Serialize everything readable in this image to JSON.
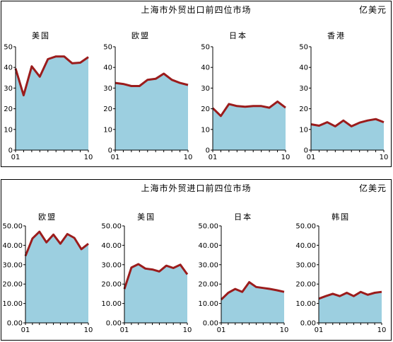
{
  "chart_data": [
    {
      "type": "area",
      "title": "上海市外贸出口前四位市场",
      "unit": "亿美元",
      "x_first": "01",
      "x_last": "10",
      "ylim": [
        0,
        50
      ],
      "yticks": [
        "0",
        "10",
        "20",
        "30",
        "40",
        "50"
      ],
      "fill_color": "#9ccfe0",
      "line_color": "#9b1c1c",
      "charts": [
        {
          "name": "美国",
          "x": [
            1,
            2,
            3,
            4,
            5,
            6,
            7,
            8,
            9,
            10
          ],
          "values": [
            39.5,
            26.5,
            40.5,
            35.5,
            44,
            45.3,
            45.3,
            42,
            42.3,
            45
          ]
        },
        {
          "name": "欧盟",
          "x": [
            1,
            2,
            3,
            4,
            5,
            6,
            7,
            8,
            9,
            10
          ],
          "values": [
            32.5,
            32,
            31,
            31,
            34,
            34.5,
            37,
            34,
            32.5,
            31.5
          ]
        },
        {
          "name": "日本",
          "x": [
            1,
            2,
            3,
            4,
            5,
            6,
            7,
            8,
            9,
            10
          ],
          "values": [
            20.3,
            16.5,
            22.3,
            21.3,
            21,
            21.3,
            21.3,
            20.5,
            23.5,
            20.5
          ]
        },
        {
          "name": "香港",
          "x": [
            1,
            2,
            3,
            4,
            5,
            6,
            7,
            8,
            9,
            10
          ],
          "values": [
            12.5,
            11.8,
            13.5,
            11.5,
            14.3,
            11.5,
            13.3,
            14.3,
            15,
            13.5
          ]
        }
      ]
    },
    {
      "type": "area",
      "title": "上海市外贸进口前四位市场",
      "unit": "亿美元",
      "x_first": "01",
      "x_last": "10",
      "ylim": [
        0,
        50
      ],
      "yticks": [
        "0.00",
        "10.00",
        "20.00",
        "30.00",
        "40.00",
        "50.00"
      ],
      "fill_color": "#9ccfe0",
      "line_color": "#9b1c1c",
      "charts": [
        {
          "name": "欧盟",
          "x": [
            1,
            2,
            3,
            4,
            5,
            6,
            7,
            8,
            9,
            10
          ],
          "values": [
            34.5,
            43.5,
            47,
            41.5,
            45.5,
            40.8,
            45.8,
            43.8,
            38,
            40.8
          ]
        },
        {
          "name": "美国",
          "x": [
            1,
            2,
            3,
            4,
            5,
            6,
            7,
            8,
            9,
            10
          ],
          "values": [
            17.5,
            28.5,
            30.3,
            28,
            27.5,
            26.5,
            29.5,
            28.3,
            30,
            25
          ]
        },
        {
          "name": "日本",
          "x": [
            1,
            2,
            3,
            4,
            5,
            6,
            7,
            8,
            9,
            10
          ],
          "values": [
            12,
            15.5,
            17.5,
            16,
            21,
            18.5,
            18,
            17.5,
            16.8,
            16
          ]
        },
        {
          "name": "韩国",
          "x": [
            1,
            2,
            3,
            4,
            5,
            6,
            7,
            8,
            9,
            10
          ],
          "values": [
            12.5,
            13.8,
            15,
            13.8,
            15.5,
            13.8,
            16,
            14.5,
            15.5,
            16
          ]
        }
      ]
    }
  ]
}
